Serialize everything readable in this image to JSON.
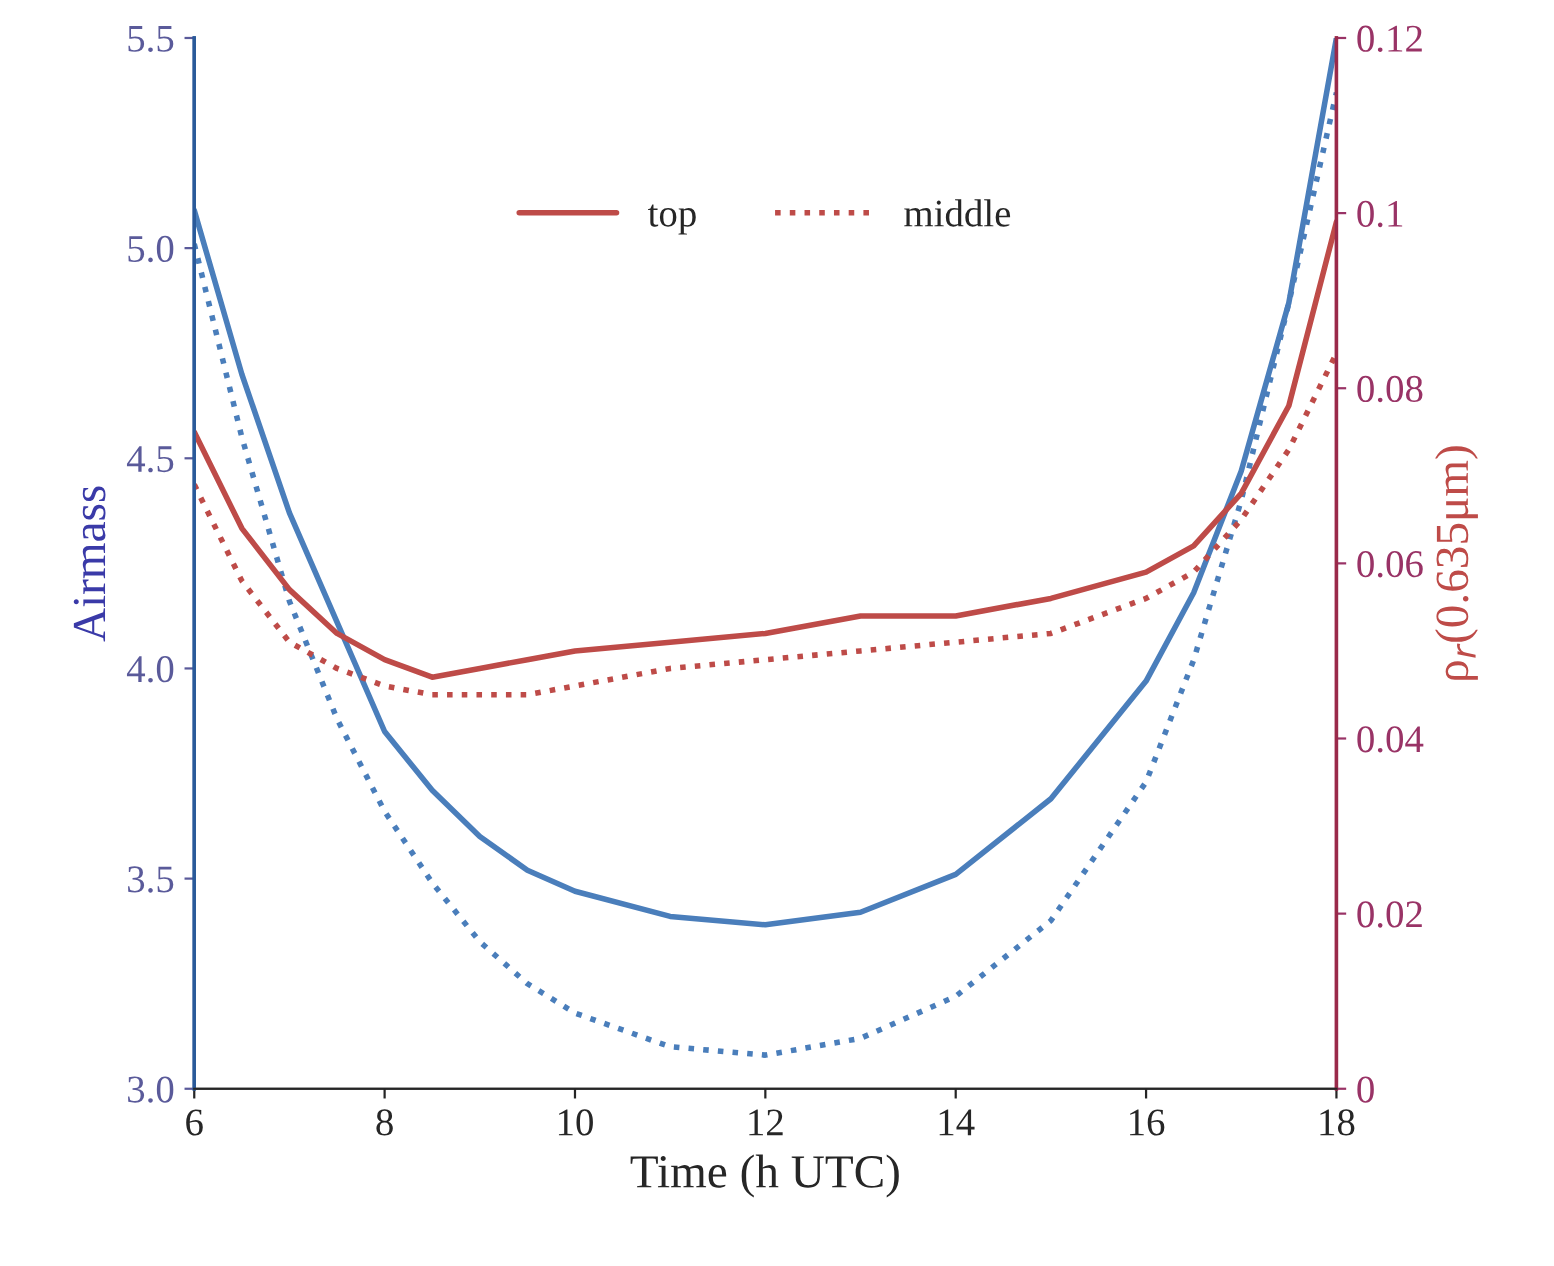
{
  "chart_data": {
    "type": "line",
    "xlabel": "Time (h UTC)",
    "ylabel": "Airmass",
    "y2label": "ρ$_{r}$(0.635μm)",
    "x": [
      6,
      6.5,
      7,
      7.5,
      8,
      8.5,
      9,
      9.5,
      10,
      11,
      12,
      13,
      14,
      15,
      16,
      16.5,
      17,
      17.5,
      18
    ],
    "series": [
      {
        "color": "#4a7ebb",
        "line_style": "solid",
        "values": [
          5.09,
          4.7,
          4.37,
          4.11,
          3.85,
          3.71,
          3.6,
          3.52,
          3.47,
          3.41,
          3.39,
          3.42,
          3.51,
          3.69,
          3.97,
          4.18,
          4.47,
          4.87,
          5.5
        ]
      },
      {
        "color": "#4a7ebb",
        "line_style": "dotted",
        "values": [
          5.01,
          4.55,
          4.16,
          3.88,
          3.66,
          3.49,
          3.35,
          3.25,
          3.18,
          3.1,
          3.08,
          3.12,
          3.22,
          3.4,
          3.73,
          4.02,
          4.4,
          4.87,
          5.37
        ]
      },
      {
        "name": "top",
        "color": "#be4b48",
        "line_style": "solid",
        "axis": "y2",
        "values": [
          0.075,
          0.064,
          0.057,
          0.052,
          0.049,
          0.047,
          0.048,
          0.049,
          0.05,
          0.051,
          0.052,
          0.054,
          0.054,
          0.056,
          0.059,
          0.062,
          0.068,
          0.078,
          0.099
        ]
      },
      {
        "name": "middle",
        "color": "#be4b48",
        "line_style": "dotted",
        "axis": "y2",
        "values": [
          0.069,
          0.058,
          0.051,
          0.048,
          0.046,
          0.045,
          0.045,
          0.045,
          0.046,
          0.048,
          0.049,
          0.05,
          0.051,
          0.052,
          0.056,
          0.059,
          0.065,
          0.073,
          0.084
        ]
      }
    ],
    "xlim": [
      6,
      18
    ],
    "xticks": [
      6,
      8,
      10,
      12,
      14,
      16,
      18
    ],
    "ylim": [
      3.0,
      5.5
    ],
    "yticks": [
      {
        "value": 3.0,
        "label": "3.0"
      },
      {
        "value": 3.5,
        "label": "3.5"
      },
      {
        "value": 4.0,
        "label": "4.0"
      },
      {
        "value": 4.5,
        "label": "4.5"
      },
      {
        "value": 5.0,
        "label": "5.0"
      },
      {
        "value": 5.5,
        "label": "5.5"
      }
    ],
    "y2lim": [
      0,
      0.12
    ],
    "y2ticks": [
      0,
      0.02,
      0.04,
      0.06,
      0.08,
      0.1,
      0.12
    ],
    "legend": "top",
    "grid": false
  }
}
